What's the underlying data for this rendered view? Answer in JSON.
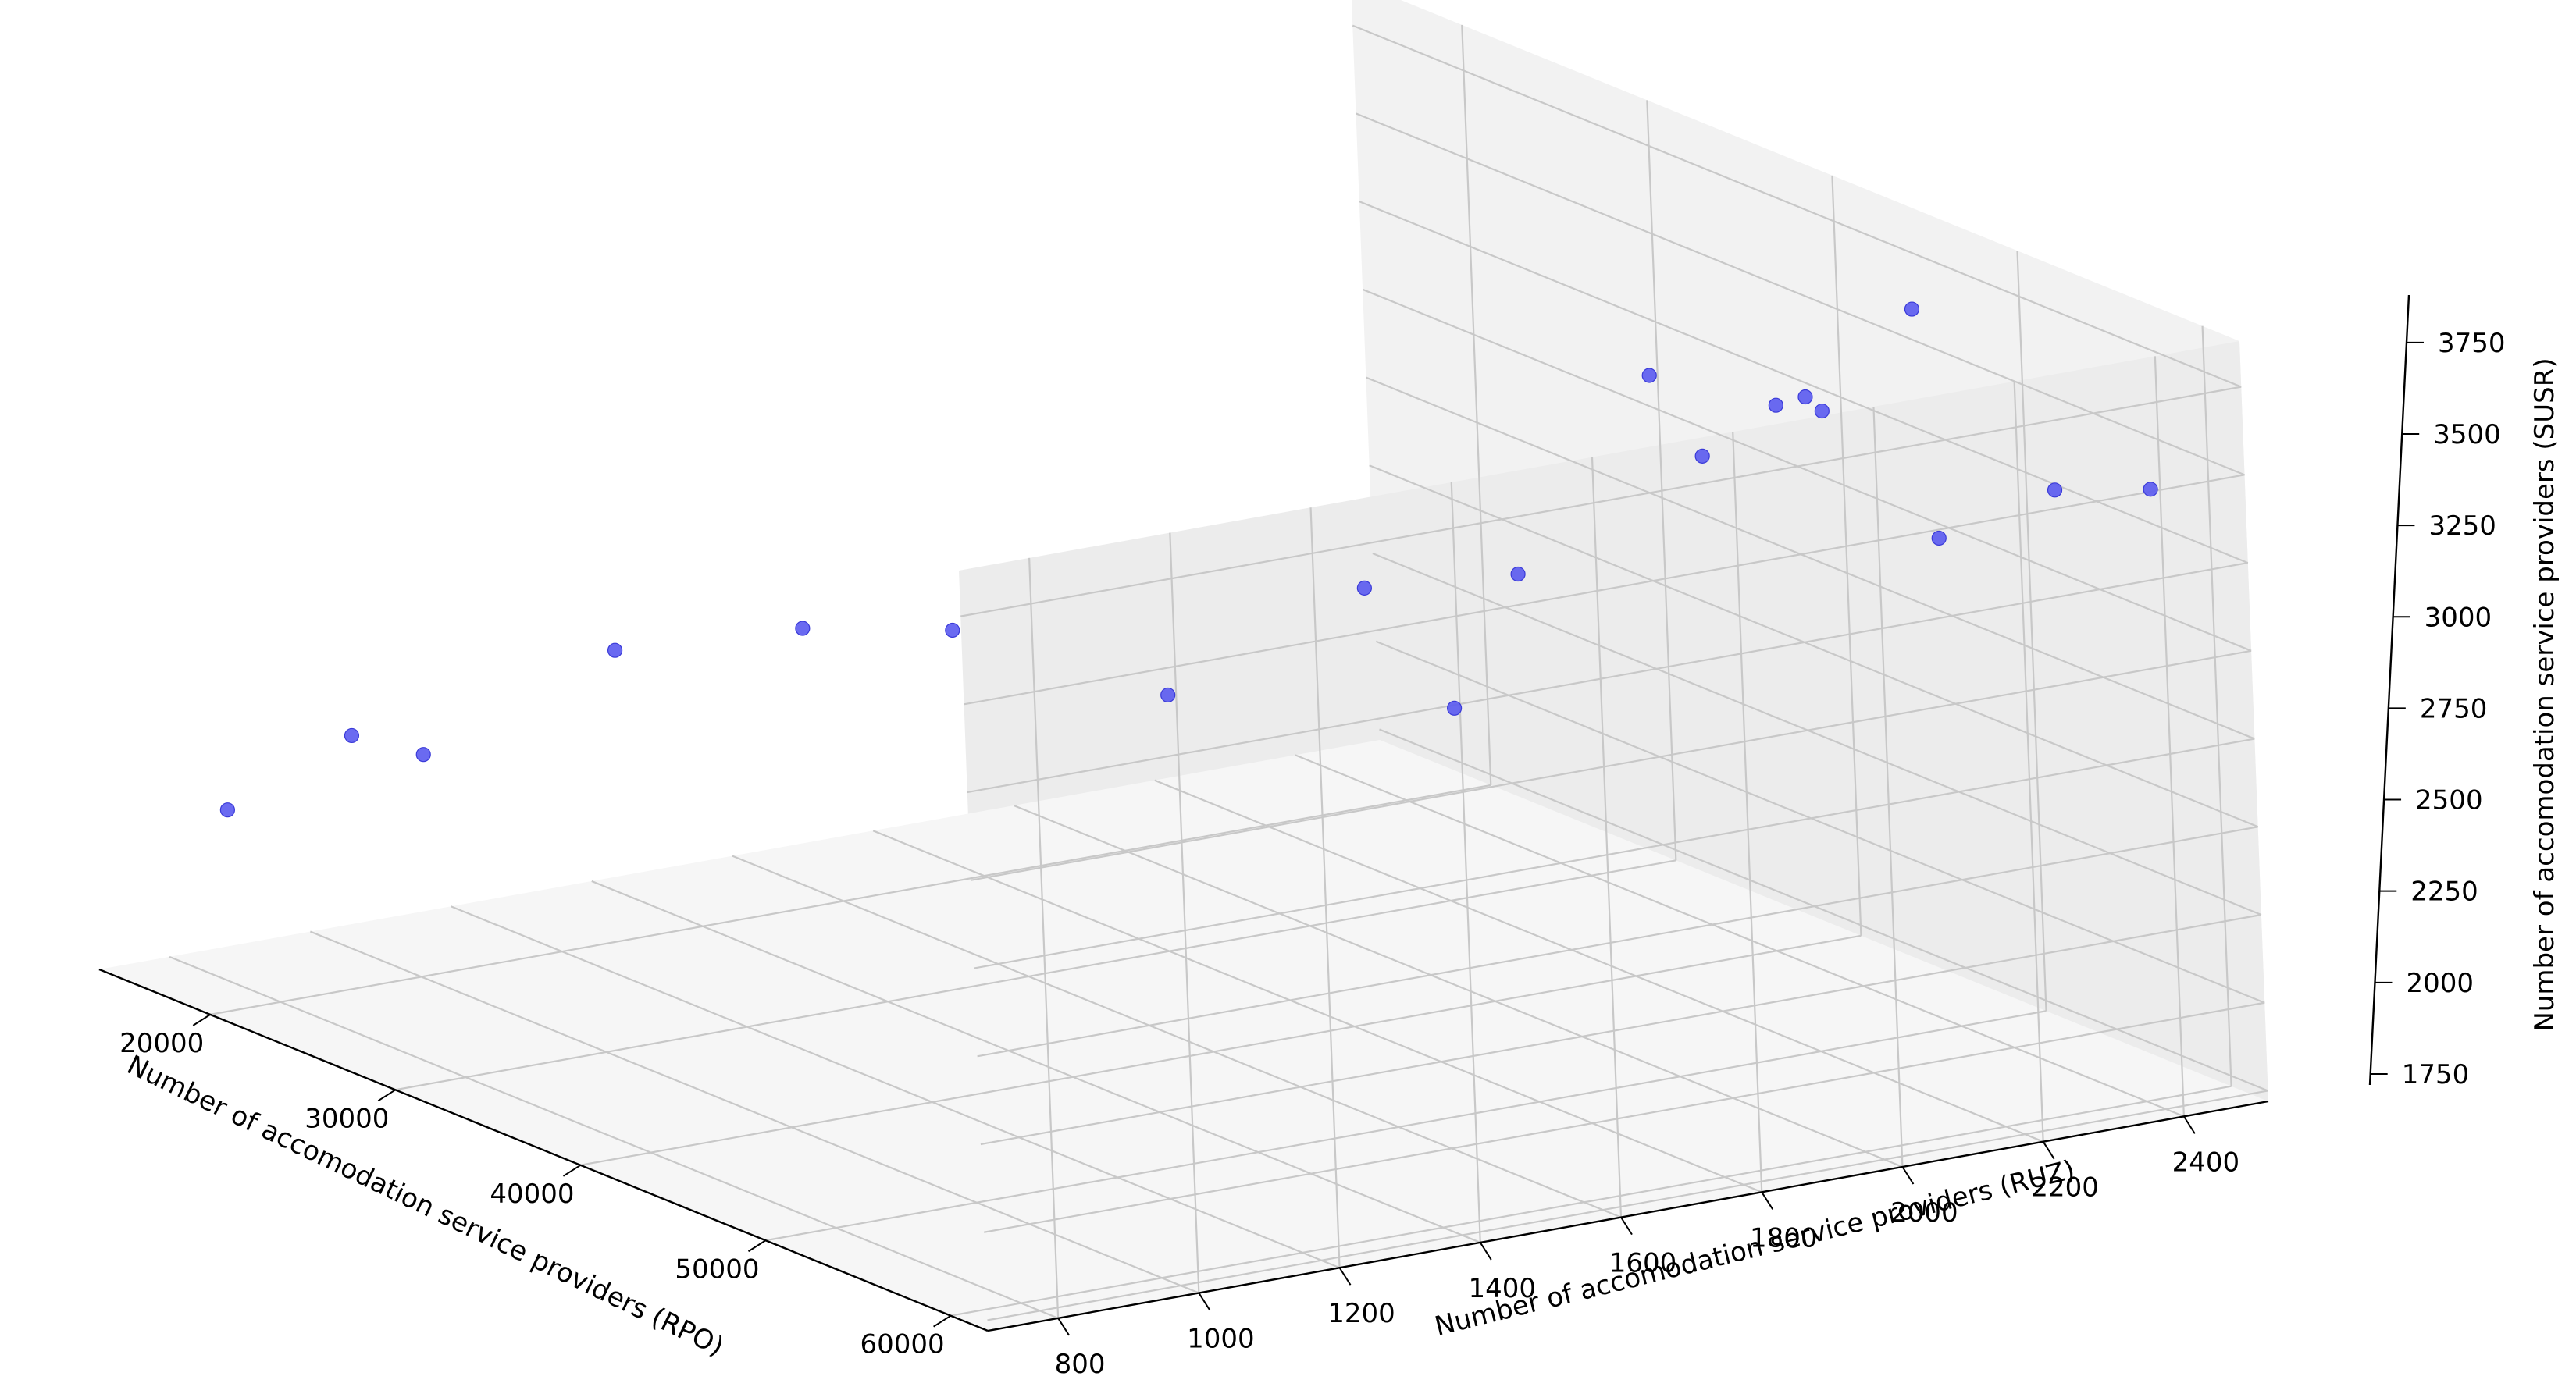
{
  "chart_data": {
    "type": "scatter",
    "projection": "3d",
    "title": "",
    "xlabel": "Number of accomodation service providers (RPO)",
    "ylabel": "Number of accomodation service providers (RUZ)",
    "zlabel": "Number of accomodation service providers (SUSR)",
    "x_ticks": [
      "20000",
      "30000",
      "40000",
      "50000",
      "60000"
    ],
    "y_ticks": [
      "800",
      "1000",
      "1200",
      "1400",
      "1600",
      "1800",
      "2000",
      "2200",
      "2400"
    ],
    "z_ticks": [
      "1750",
      "2000",
      "2250",
      "2500",
      "2750",
      "3000",
      "3250",
      "3500",
      "3750"
    ],
    "xlim": [
      14000,
      62000
    ],
    "ylim": [
      700,
      2520
    ],
    "zlim": [
      1720,
      3880
    ],
    "grid": true,
    "marker_color": "#5a5af0",
    "points": [
      {
        "x": 17100,
        "y": 810,
        "z": 2200
      },
      {
        "x": 17850,
        "y": 970,
        "z": 2370
      },
      {
        "x": 19800,
        "y": 1020,
        "z": 2340
      },
      {
        "x": 21200,
        "y": 1260,
        "z": 2580
      },
      {
        "x": 22600,
        "y": 1490,
        "z": 2590
      },
      {
        "x": 24600,
        "y": 1650,
        "z": 2570
      },
      {
        "x": 28900,
        "y": 1840,
        "z": 2410
      },
      {
        "x": 30600,
        "y": 2200,
        "z": 2280
      },
      {
        "x": 29800,
        "y": 2100,
        "z": 2640
      },
      {
        "x": 38100,
        "y": 2300,
        "z": 3350
      },
      {
        "x": 38900,
        "y": 2350,
        "z": 3120
      },
      {
        "x": 40200,
        "y": 2050,
        "z": 2920
      },
      {
        "x": 47500,
        "y": 2300,
        "z": 3450
      },
      {
        "x": 50500,
        "y": 2200,
        "z": 3590
      },
      {
        "x": 50700,
        "y": 2350,
        "z": 3790
      },
      {
        "x": 54700,
        "y": 2050,
        "z": 3710
      },
      {
        "x": 55600,
        "y": 2250,
        "z": 3280
      },
      {
        "x": 57000,
        "y": 2380,
        "z": 3400
      },
      {
        "x": 57200,
        "y": 2510,
        "z": 3360
      }
    ]
  }
}
